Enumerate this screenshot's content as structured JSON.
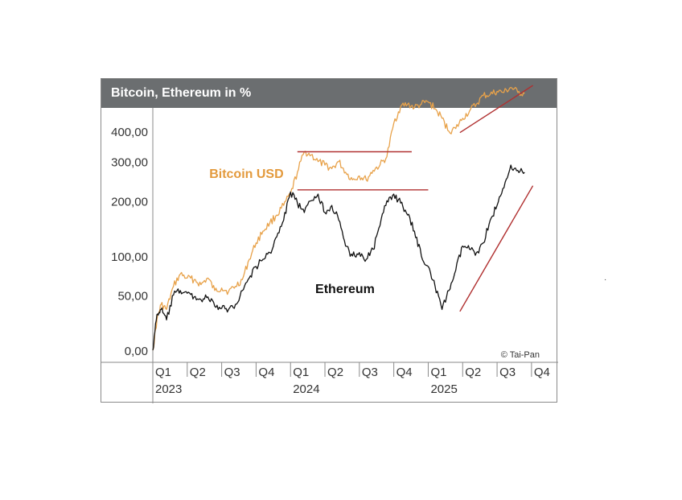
{
  "chart_data": {
    "type": "line",
    "title": "Bitcoin, Ethereum in %",
    "y_scale": "log (value + 100)",
    "ylim": [
      0,
      700
    ],
    "y_ticks": [
      {
        "value": 0,
        "label": "0,00"
      },
      {
        "value": 50,
        "label": "50,00"
      },
      {
        "value": 100,
        "label": "100,00"
      },
      {
        "value": 200,
        "label": "200,00"
      },
      {
        "value": 300,
        "label": "300,00"
      },
      {
        "value": 400,
        "label": "400,00"
      }
    ],
    "xlim": [
      2023.0,
      2025.85
    ],
    "x_ticks": [
      {
        "value": 2023.0,
        "quarter": "Q1",
        "year": "2023"
      },
      {
        "value": 2023.25,
        "quarter": "Q2",
        "year": ""
      },
      {
        "value": 2023.5,
        "quarter": "Q3",
        "year": ""
      },
      {
        "value": 2023.75,
        "quarter": "Q4",
        "year": ""
      },
      {
        "value": 2024.0,
        "quarter": "Q1",
        "year": "2024"
      },
      {
        "value": 2024.25,
        "quarter": "Q2",
        "year": ""
      },
      {
        "value": 2024.5,
        "quarter": "Q3",
        "year": ""
      },
      {
        "value": 2024.75,
        "quarter": "Q4",
        "year": ""
      },
      {
        "value": 2025.0,
        "quarter": "Q1",
        "year": "2025"
      },
      {
        "value": 2025.25,
        "quarter": "Q2",
        "year": ""
      },
      {
        "value": 2025.5,
        "quarter": "Q3",
        "year": ""
      },
      {
        "value": 2025.75,
        "quarter": "Q4",
        "year": ""
      }
    ],
    "series": [
      {
        "name": "Bitcoin USD",
        "color": "#e8a24a",
        "label_color": "#e39a3d",
        "x": [
          2023.0,
          2023.03,
          2023.06,
          2023.1,
          2023.15,
          2023.2,
          2023.25,
          2023.3,
          2023.35,
          2023.4,
          2023.45,
          2023.5,
          2023.55,
          2023.6,
          2023.65,
          2023.7,
          2023.75,
          2023.8,
          2023.85,
          2023.9,
          2023.95,
          2024.0,
          2024.05,
          2024.1,
          2024.15,
          2024.2,
          2024.25,
          2024.3,
          2024.35,
          2024.4,
          2024.45,
          2024.5,
          2024.55,
          2024.6,
          2024.65,
          2024.7,
          2024.75,
          2024.8,
          2024.85,
          2024.9,
          2024.95,
          2025.0,
          2025.05,
          2025.1,
          2025.15,
          2025.2,
          2025.25,
          2025.3,
          2025.35,
          2025.4,
          2025.45,
          2025.5,
          2025.55,
          2025.6,
          2025.65,
          2025.7
        ],
        "values": [
          0,
          25,
          40,
          35,
          60,
          75,
          70,
          68,
          62,
          70,
          55,
          58,
          54,
          60,
          68,
          95,
          120,
          140,
          155,
          170,
          190,
          215,
          270,
          330,
          320,
          300,
          290,
          280,
          300,
          270,
          250,
          260,
          250,
          275,
          290,
          315,
          430,
          500,
          510,
          495,
          510,
          520,
          490,
          450,
          400,
          410,
          450,
          480,
          510,
          550,
          555,
          570,
          565,
          590,
          565,
          560
        ]
      },
      {
        "name": "Ethereum",
        "color": "#111111",
        "label_color": "#111111",
        "x": [
          2023.0,
          2023.03,
          2023.06,
          2023.1,
          2023.15,
          2023.2,
          2023.25,
          2023.3,
          2023.35,
          2023.4,
          2023.45,
          2023.5,
          2023.55,
          2023.6,
          2023.65,
          2023.7,
          2023.75,
          2023.8,
          2023.85,
          2023.9,
          2023.95,
          2024.0,
          2024.05,
          2024.1,
          2024.15,
          2024.2,
          2024.25,
          2024.3,
          2024.35,
          2024.4,
          2024.45,
          2024.5,
          2024.55,
          2024.6,
          2024.65,
          2024.7,
          2024.75,
          2024.8,
          2024.85,
          2024.9,
          2024.95,
          2025.0,
          2025.05,
          2025.1,
          2025.15,
          2025.2,
          2025.25,
          2025.3,
          2025.35,
          2025.4,
          2025.45,
          2025.5,
          2025.55,
          2025.6,
          2025.65,
          2025.7
        ],
        "values": [
          0,
          30,
          35,
          25,
          50,
          55,
          52,
          48,
          45,
          48,
          38,
          36,
          35,
          40,
          55,
          70,
          85,
          95,
          105,
          130,
          160,
          220,
          195,
          175,
          200,
          215,
          175,
          190,
          160,
          115,
          100,
          105,
          95,
          110,
          150,
          200,
          215,
          195,
          170,
          140,
          100,
          85,
          60,
          35,
          55,
          80,
          115,
          110,
          105,
          120,
          160,
          190,
          230,
          290,
          275,
          270
        ]
      }
    ],
    "annotations": [
      {
        "type": "segment",
        "color": "#b03030",
        "x": [
          2024.05,
          2024.88
        ],
        "y": [
          330,
          330
        ]
      },
      {
        "type": "segment",
        "color": "#b03030",
        "x": [
          2024.05,
          2025.0
        ],
        "y": [
          225,
          225
        ]
      },
      {
        "type": "segment",
        "color": "#b03030",
        "x": [
          2025.23,
          2025.76
        ],
        "y": [
          395,
          600
        ]
      },
      {
        "type": "segment",
        "color": "#b03030",
        "x": [
          2025.23,
          2025.76
        ],
        "y": [
          33,
          235
        ]
      }
    ],
    "series_labels": [
      {
        "text": "Bitcoin USD",
        "x": 2023.41,
        "y": 255
      },
      {
        "text": "Ethereum",
        "x": 2024.18,
        "y": 52
      }
    ],
    "copyright": "© Tai-Pan"
  },
  "stray_mark": "·"
}
